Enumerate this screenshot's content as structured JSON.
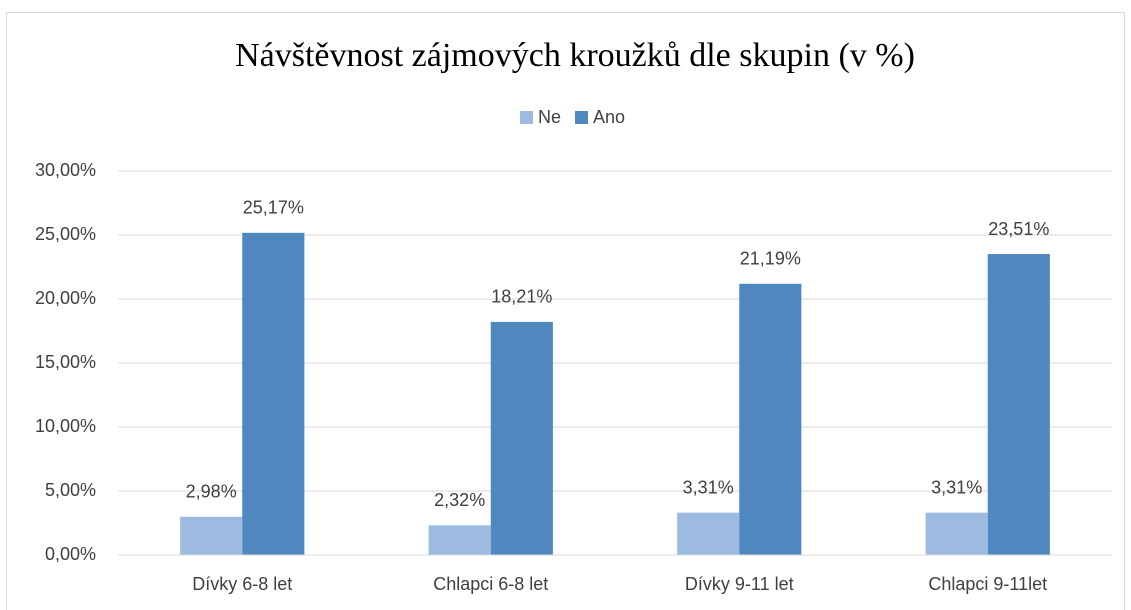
{
  "chart_data": {
    "type": "bar",
    "title": "Návštěvnost zájmových kroužků dle skupin (v %)",
    "categories": [
      "Dívky 6-8 let",
      "Chlapci 6-8 let",
      "Dívky 9-11 let",
      "Chlapci 9-11let"
    ],
    "series": [
      {
        "name": "Ne",
        "color": "#9dbbe1",
        "values": [
          2.98,
          2.32,
          3.31,
          3.31
        ],
        "value_labels": [
          "2,98%",
          "2,32%",
          "3,31%",
          "3,31%"
        ]
      },
      {
        "name": "Ano",
        "color": "#4f88bf",
        "values": [
          25.17,
          18.21,
          21.19,
          23.51
        ],
        "value_labels": [
          "25,17%",
          "18,21%",
          "21,19%",
          "23,51%"
        ]
      }
    ],
    "ylim": [
      0,
      30
    ],
    "yticks": [
      {
        "value": 0,
        "label": "0,00%"
      },
      {
        "value": 5,
        "label": "5,00%"
      },
      {
        "value": 10,
        "label": "10,00%"
      },
      {
        "value": 15,
        "label": "15,00%"
      },
      {
        "value": 20,
        "label": "20,00%"
      },
      {
        "value": 25,
        "label": "25,00%"
      },
      {
        "value": 30,
        "label": "30,00%"
      }
    ],
    "grid": true,
    "legend": "top"
  }
}
